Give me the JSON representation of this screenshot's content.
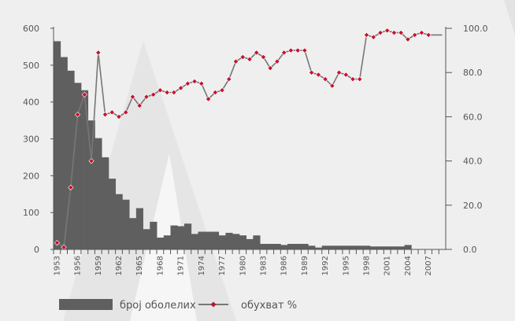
{
  "chart_data": {
    "type": "bar+line",
    "title": "",
    "xlabel": "",
    "ylabel": "",
    "y_left_range": [
      0,
      600
    ],
    "y_left_ticks": [
      "0",
      "100",
      "200",
      "300",
      "400",
      "500",
      "600"
    ],
    "y_right_range": [
      0,
      100
    ],
    "y_right_ticks": [
      "0.0",
      "20.0",
      "40.0",
      "60.0",
      "80.0",
      "100.0"
    ],
    "x_range": [
      1953,
      2009
    ],
    "x_tick_labels": [
      "1953",
      "1956",
      "1959",
      "1962",
      "1965",
      "1968",
      "1971",
      "1974",
      "1977",
      "1980",
      "1983",
      "1986",
      "1989",
      "1992",
      "1995",
      "1998",
      "2001",
      "2004",
      "2007"
    ],
    "legend_position": "bottom-left",
    "colors": {
      "bars": "#5f5f5f",
      "line": "#777777",
      "markers": "#c8102e",
      "axes": "#555555"
    },
    "series": [
      {
        "name": "број оболелих",
        "type": "bar",
        "x": [
          1953,
          1954,
          1955,
          1956,
          1957,
          1958,
          1959,
          1960,
          1961,
          1962,
          1963,
          1964,
          1965,
          1966,
          1967,
          1968,
          1969,
          1970,
          1971,
          1972,
          1973,
          1974,
          1975,
          1976,
          1977,
          1978,
          1979,
          1980,
          1981,
          1982,
          1983,
          1984,
          1985,
          1986,
          1987,
          1988,
          1989,
          1990,
          1991,
          1992,
          1993,
          1994,
          1995,
          1996,
          1997,
          1998,
          1999,
          2000,
          2001,
          2002,
          2003,
          2004
        ],
        "values": [
          565,
          522,
          485,
          452,
          432,
          350,
          302,
          250,
          192,
          150,
          135,
          85,
          112,
          55,
          75,
          32,
          38,
          65,
          63,
          70,
          42,
          48,
          48,
          48,
          38,
          45,
          42,
          38,
          28,
          38,
          15,
          15,
          15,
          12,
          15,
          15,
          15,
          10,
          5,
          10,
          10,
          10,
          10,
          10,
          10,
          10,
          8,
          8,
          8,
          8,
          8,
          12
        ]
      },
      {
        "name": "обухват %",
        "type": "line",
        "x": [
          1953,
          1954,
          1955,
          1956,
          1957,
          1958,
          1959,
          1960,
          1961,
          1962,
          1963,
          1964,
          1965,
          1966,
          1967,
          1968,
          1969,
          1970,
          1971,
          1972,
          1973,
          1974,
          1975,
          1976,
          1977,
          1978,
          1979,
          1980,
          1981,
          1982,
          1983,
          1984,
          1985,
          1986,
          1987,
          1988,
          1989,
          1990,
          1991,
          1992,
          1993,
          1994,
          1995,
          1996,
          1997,
          1998,
          1999,
          2000,
          2001,
          2002,
          2003,
          2004,
          2005,
          2006,
          2007,
          2008,
          2009
        ],
        "values": [
          3,
          1,
          28,
          61,
          70,
          40,
          89,
          61,
          62,
          60,
          62,
          69,
          65,
          69,
          70,
          72,
          71,
          71,
          73,
          75,
          76,
          75,
          68,
          71,
          72,
          77,
          85,
          87,
          86,
          89,
          87,
          82,
          85,
          89,
          90,
          90,
          90,
          80,
          79,
          77,
          74,
          80,
          79,
          77,
          77,
          97,
          96,
          98,
          99,
          98,
          98,
          95,
          97,
          98,
          97,
          97,
          97
        ],
        "markers": [
          true,
          true,
          true,
          true,
          true,
          true,
          true,
          true,
          true,
          true,
          true,
          true,
          true,
          true,
          true,
          true,
          true,
          true,
          true,
          true,
          true,
          true,
          true,
          true,
          true,
          true,
          true,
          true,
          true,
          true,
          true,
          true,
          true,
          true,
          true,
          true,
          true,
          true,
          true,
          true,
          true,
          true,
          true,
          true,
          true,
          true,
          true,
          true,
          true,
          true,
          true,
          true,
          true,
          true,
          true,
          false,
          false
        ]
      }
    ]
  }
}
